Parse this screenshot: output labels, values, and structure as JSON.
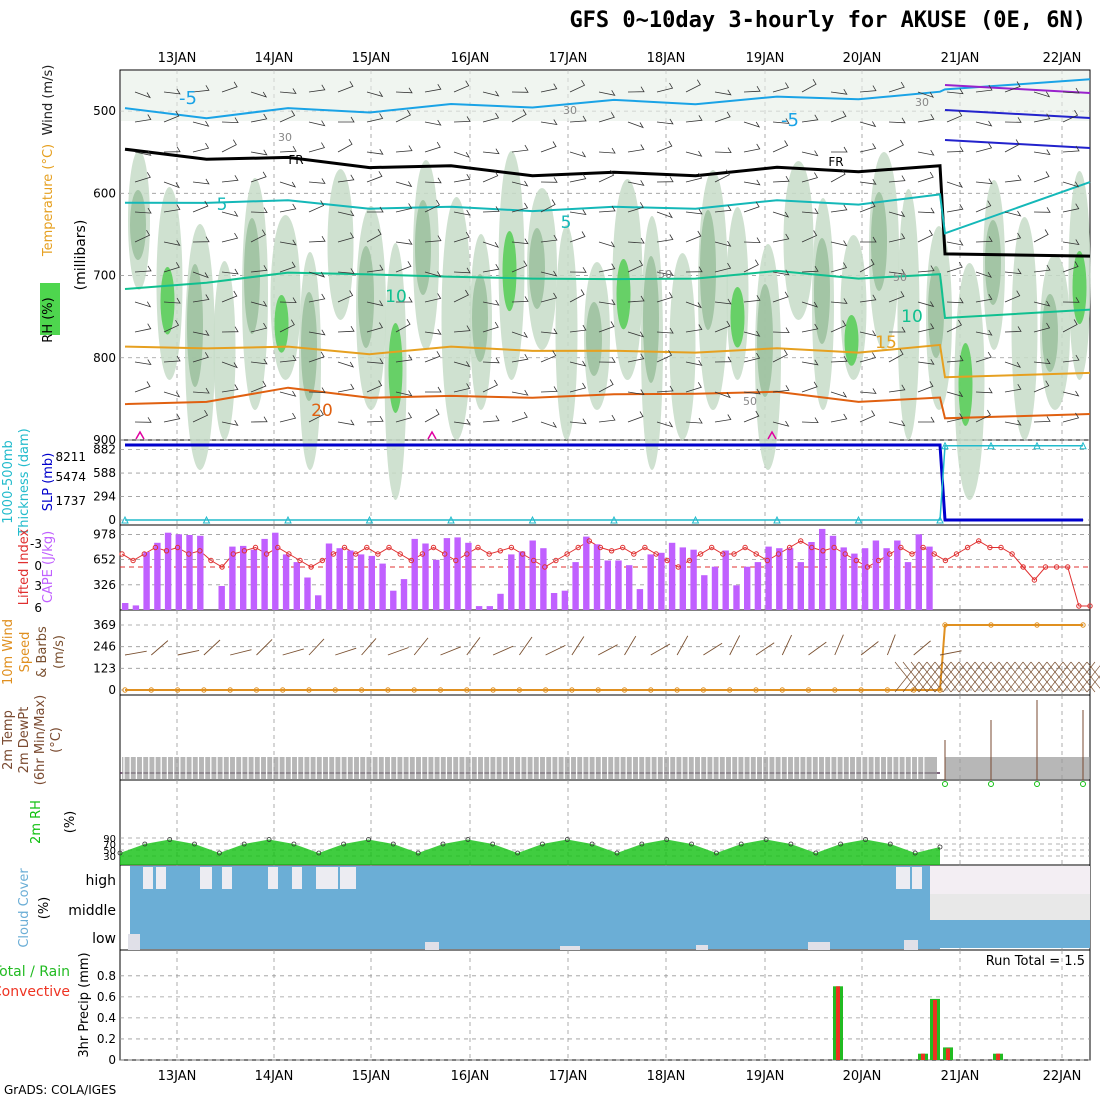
{
  "title": "GFS 0~10day 3-hourly for AKUSE (0E, 6N)",
  "credit": "GrADS: COLA/IGES",
  "run_total_text": "Run Total = 1.5",
  "colors": {
    "temperature_cold": "#1aa3e6",
    "temperature_mid": "#14b8b8",
    "temperature_warm": "#e6a020",
    "temperature_hot": "#e06010",
    "freezing": "#000000",
    "slp": "#0000cc",
    "thickness": "#22bbcc",
    "cape": "#c060ff",
    "lifted_index": "#e03030",
    "wind10m": "#e09020",
    "rh2m": "#10c010",
    "cloud": "#6baed6",
    "precip_total": "#22bb22",
    "precip_convective": "#ee3322"
  },
  "chart_data": [
    {
      "type": "heatmap",
      "panel": "upper-air",
      "ylabel": [
        "RH (%)",
        "Temperature (°C)",
        "Wind (m/s)",
        "(millibars)"
      ],
      "x_ticks": [
        "13JAN",
        "14JAN",
        "15JAN",
        "16JAN",
        "17JAN",
        "18JAN",
        "19JAN",
        "20JAN",
        "21JAN",
        "22JAN"
      ],
      "y_ticks": [
        500,
        600,
        700,
        800,
        900
      ],
      "ylim": [
        900,
        450
      ],
      "isotherm_labels": [
        "-5",
        "-5",
        "5",
        "5",
        "10",
        "10",
        "15",
        "20",
        "FR",
        "FR"
      ],
      "rh_labels": [
        "30",
        "30",
        "30",
        "50",
        "50",
        "50"
      ],
      "isotherms": [
        {
          "name": "-5",
          "values_mb": [
            500,
            505,
            500,
            498,
            495,
            492,
            490,
            488,
            486,
            482,
            480,
            470,
            465
          ]
        },
        {
          "name": "FR",
          "values_mb": [
            550,
            555,
            560,
            565,
            570,
            575,
            578,
            575,
            572,
            570,
            570,
            670,
            680
          ]
        },
        {
          "name": "5",
          "values_mb": [
            615,
            608,
            612,
            615,
            620,
            618,
            620,
            615,
            612,
            610,
            605,
            645,
            590
          ]
        },
        {
          "name": "10",
          "values_mb": [
            720,
            705,
            700,
            695,
            705,
            700,
            708,
            700,
            698,
            700,
            702,
            748,
            745
          ]
        },
        {
          "name": "15",
          "values_mb": [
            790,
            785,
            790,
            792,
            790,
            788,
            795,
            790,
            792,
            790,
            788,
            820,
            822
          ]
        },
        {
          "name": "20",
          "values_mb": [
            860,
            850,
            840,
            845,
            850,
            845,
            848,
            840,
            845,
            850,
            852,
            870,
            872
          ]
        }
      ]
    },
    {
      "type": "line",
      "panel": "slp-thickness",
      "ylabel": [
        "1000-500mb",
        "Thickness (dam)",
        "SLP (mb)"
      ],
      "left_ticks": [
        0,
        294,
        588,
        882
      ],
      "left_ticks_thickness": [
        1737,
        5474,
        8211
      ],
      "series": [
        {
          "values": [
            940,
            940,
            940,
            940,
            940,
            940,
            940,
            940,
            940,
            940,
            940,
            0,
            0,
            0,
            0
          ]
        },
        {
          "values": [
            0,
            0,
            0,
            0,
            0,
            0,
            0,
            0,
            0,
            0,
            0,
            930,
            930,
            930,
            930
          ]
        }
      ]
    },
    {
      "type": "bar",
      "panel": "cape-li",
      "ylabel": [
        "Lifted Index",
        "CAPE (J/kg)"
      ],
      "left_ticks": [
        326,
        652,
        978
      ],
      "left_ticks_li": [
        -3,
        0,
        3,
        6
      ],
      "series": [
        {
          "values": [
            90,
            60,
            750,
            870,
            1000,
            980,
            970,
            960,
            0,
            310,
            820,
            830,
            780,
            920,
            1000,
            720,
            620,
            420,
            190,
            860,
            800,
            770,
            720,
            700,
            600,
            250,
            400,
            920,
            860,
            650,
            930,
            940,
            870,
            50,
            50,
            210,
            720,
            760,
            900,
            800,
            220,
            250,
            620,
            950,
            850,
            640,
            640,
            580,
            270,
            720,
            740,
            870,
            810,
            780,
            450,
            560,
            770,
            320,
            560,
            620,
            820,
            800,
            800,
            620,
            880,
            1050,
            960,
            810,
            730,
            800,
            900,
            800,
            900,
            620,
            980,
            820
          ]
        },
        {
          "values": [
            -2,
            -1,
            -2,
            -3,
            -2.5,
            -3,
            -2,
            -2.5,
            -1,
            0,
            -2,
            -2.5,
            -3,
            -2,
            -3,
            -2,
            -1,
            0,
            -1,
            -2,
            -3,
            -2,
            -3,
            -2,
            -3,
            -2,
            -1,
            -2,
            -3,
            -2,
            -1,
            -2,
            -3,
            -2,
            -2.5,
            -3,
            -2,
            -1,
            0,
            -1,
            -2,
            -3,
            -4,
            -3,
            -2.5,
            -3,
            -2,
            -3,
            -2,
            -1,
            0,
            -1,
            -2,
            -3,
            -2,
            -2,
            -3,
            -2,
            -1,
            -2,
            -3,
            -4,
            -3,
            -2.5,
            -3,
            -2,
            -1,
            0,
            -1,
            -2,
            -3,
            -2,
            -3,
            -2,
            -1,
            -2,
            -3,
            -4,
            -3,
            -3,
            -2,
            0,
            2,
            0,
            0,
            0,
            6,
            6
          ]
        }
      ]
    },
    {
      "type": "line",
      "panel": "wind10m",
      "ylabel": [
        "10m Wind",
        "Speed",
        "& Barbs",
        "(m/s)"
      ],
      "left_ticks": [
        0,
        123,
        246,
        369
      ],
      "series": [
        {
          "values": [
            0,
            0,
            0,
            0,
            0,
            0,
            0,
            0,
            0,
            0,
            0,
            369,
            369,
            369,
            369
          ]
        }
      ]
    },
    {
      "type": "line",
      "panel": "temp2m",
      "ylabel": [
        "2m Temp",
        "2m DewPt",
        "(6hr Min/Max)",
        "(°C)"
      ],
      "series": [
        {
          "values": [
            0,
            0,
            0,
            0,
            0,
            0,
            0,
            0,
            0,
            0,
            0,
            20,
            30,
            40,
            35
          ]
        }
      ]
    },
    {
      "type": "area",
      "panel": "rh2m",
      "ylabel": [
        "2m RH",
        "(%)"
      ],
      "left_ticks": [
        90,
        70,
        50,
        30
      ],
      "series": [
        {
          "values": [
            40,
            70,
            85,
            70,
            40,
            70,
            85,
            70,
            40,
            70,
            85,
            70,
            40,
            70,
            85,
            70,
            40,
            70,
            85,
            70,
            40,
            70,
            85,
            70,
            40,
            70,
            85,
            70,
            40,
            70,
            85,
            70,
            40,
            60
          ]
        }
      ]
    },
    {
      "type": "area",
      "panel": "cloud",
      "ylabel": [
        "Cloud Cover",
        "(%)"
      ],
      "row_labels": [
        "high",
        "middle",
        "low"
      ],
      "series": [
        {
          "values": [
            100,
            100,
            100,
            100,
            100,
            100,
            100,
            100,
            100,
            100,
            0,
            0,
            0
          ]
        }
      ]
    },
    {
      "type": "bar",
      "panel": "precip",
      "ylabel": [
        "Total / Rain",
        "Convective",
        "3hr Precip (mm)"
      ],
      "y_ticks": [
        "0",
        "0.2",
        "0.4",
        "0.6",
        "0.8"
      ],
      "ylim": [
        0,
        0.95
      ],
      "series": [
        {
          "values": [
            0.7,
            0.06,
            0.58,
            0.12,
            0.06
          ]
        },
        {
          "values": [
            0.7,
            0.06,
            0.57,
            0.11,
            0.06
          ]
        }
      ]
    }
  ]
}
